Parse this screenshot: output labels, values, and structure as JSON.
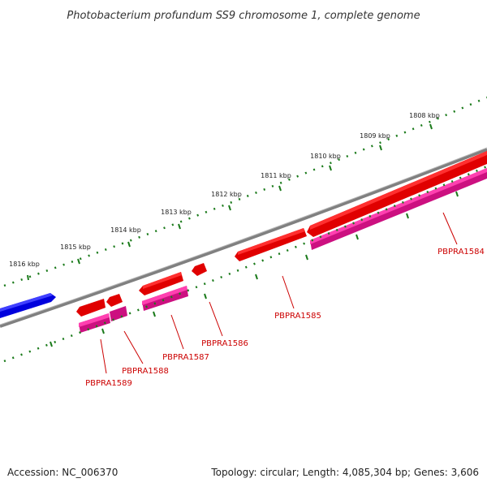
{
  "title": "Photobacterium profundum SS9 chromosome 1, complete genome",
  "footer": {
    "accession": "Accession: NC_006370",
    "summary": "Topology: circular; Length: 4,085,304 bp; Genes: 3,606"
  },
  "ruler": {
    "labels": [
      "1816 kbp",
      "1815 kbp",
      "1814 kbp",
      "1813 kbp",
      "1812 kbp",
      "1811 kbp",
      "1810 kbp",
      "1809 kbp",
      "1808 kbp"
    ]
  },
  "genes": {
    "labels": [
      "PBPRA1584",
      "PBPRA1585",
      "PBPRA1586",
      "PBPRA1587",
      "PBPRA1588",
      "PBPRA1589"
    ]
  },
  "colors": {
    "backbone": "#808080",
    "forward_cds": "#e00000",
    "reverse_cds": "#0000dd",
    "gene_feature": "#e0209a",
    "ruler_tick": "#1a7a1a",
    "gene_label": "#cc0000"
  }
}
